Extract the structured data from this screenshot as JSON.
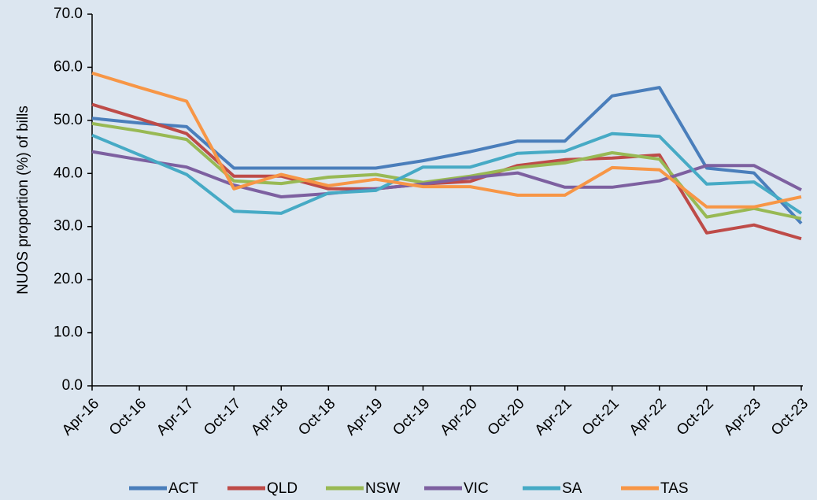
{
  "chart_data": {
    "type": "line",
    "y_label": "NUOS proportion (%) of bills",
    "categories": [
      "Apr-16",
      "Oct-16",
      "Apr-17",
      "Oct-17",
      "Apr-18",
      "Oct-18",
      "Apr-19",
      "Oct-19",
      "Apr-20",
      "Oct-20",
      "Apr-21",
      "Oct-21",
      "Apr-22",
      "Oct-22",
      "Apr-23",
      "Oct-23"
    ],
    "series": [
      {
        "name": "ACT",
        "color": "#4a7ebb",
        "values": [
          50.4,
          49.5,
          48.8,
          41.0,
          41.0,
          41.0,
          41.0,
          42.4,
          44.1,
          46.1,
          46.1,
          54.6,
          56.2,
          41.0,
          40.1,
          30.6
        ]
      },
      {
        "name": "QLD",
        "color": "#be4b48",
        "values": [
          53.0,
          50.3,
          47.5,
          39.5,
          39.5,
          37.1,
          37.1,
          38.0,
          38.5,
          41.5,
          42.6,
          42.9,
          43.5,
          28.8,
          30.3,
          27.7
        ]
      },
      {
        "name": "NSW",
        "color": "#98b954",
        "values": [
          49.4,
          48.0,
          46.4,
          38.6,
          38.1,
          39.3,
          39.8,
          38.3,
          39.5,
          41.1,
          42.0,
          43.9,
          42.7,
          31.8,
          33.4,
          31.5
        ]
      },
      {
        "name": "VIC",
        "color": "#7d60a0",
        "values": [
          44.1,
          42.6,
          41.2,
          37.8,
          35.6,
          36.2,
          37.1,
          38.0,
          39.2,
          40.1,
          37.4,
          37.4,
          38.6,
          41.5,
          41.5,
          36.9
        ]
      },
      {
        "name": "SA",
        "color": "#46aac5",
        "values": [
          47.2,
          43.5,
          39.8,
          32.9,
          32.5,
          36.3,
          36.8,
          41.2,
          41.2,
          43.8,
          44.2,
          47.5,
          47.0,
          38.0,
          38.4,
          32.5
        ]
      },
      {
        "name": "TAS",
        "color": "#f79646",
        "values": [
          58.9,
          56.2,
          53.6,
          37.1,
          39.8,
          37.7,
          38.9,
          37.5,
          37.5,
          35.9,
          35.9,
          41.1,
          40.7,
          33.7,
          33.7,
          35.6
        ]
      }
    ],
    "ylim": [
      0,
      70
    ],
    "yticks": [
      {
        "value": 0,
        "label": "0.0"
      },
      {
        "value": 10,
        "label": "10.0"
      },
      {
        "value": 20,
        "label": "20.0"
      },
      {
        "value": 30,
        "label": "30.0"
      },
      {
        "value": 40,
        "label": "40.0"
      },
      {
        "value": 50,
        "label": "50.0"
      },
      {
        "value": 60,
        "label": "60.0"
      },
      {
        "value": 70,
        "label": "70.0"
      }
    ],
    "legend": "bottom",
    "grid": false
  }
}
